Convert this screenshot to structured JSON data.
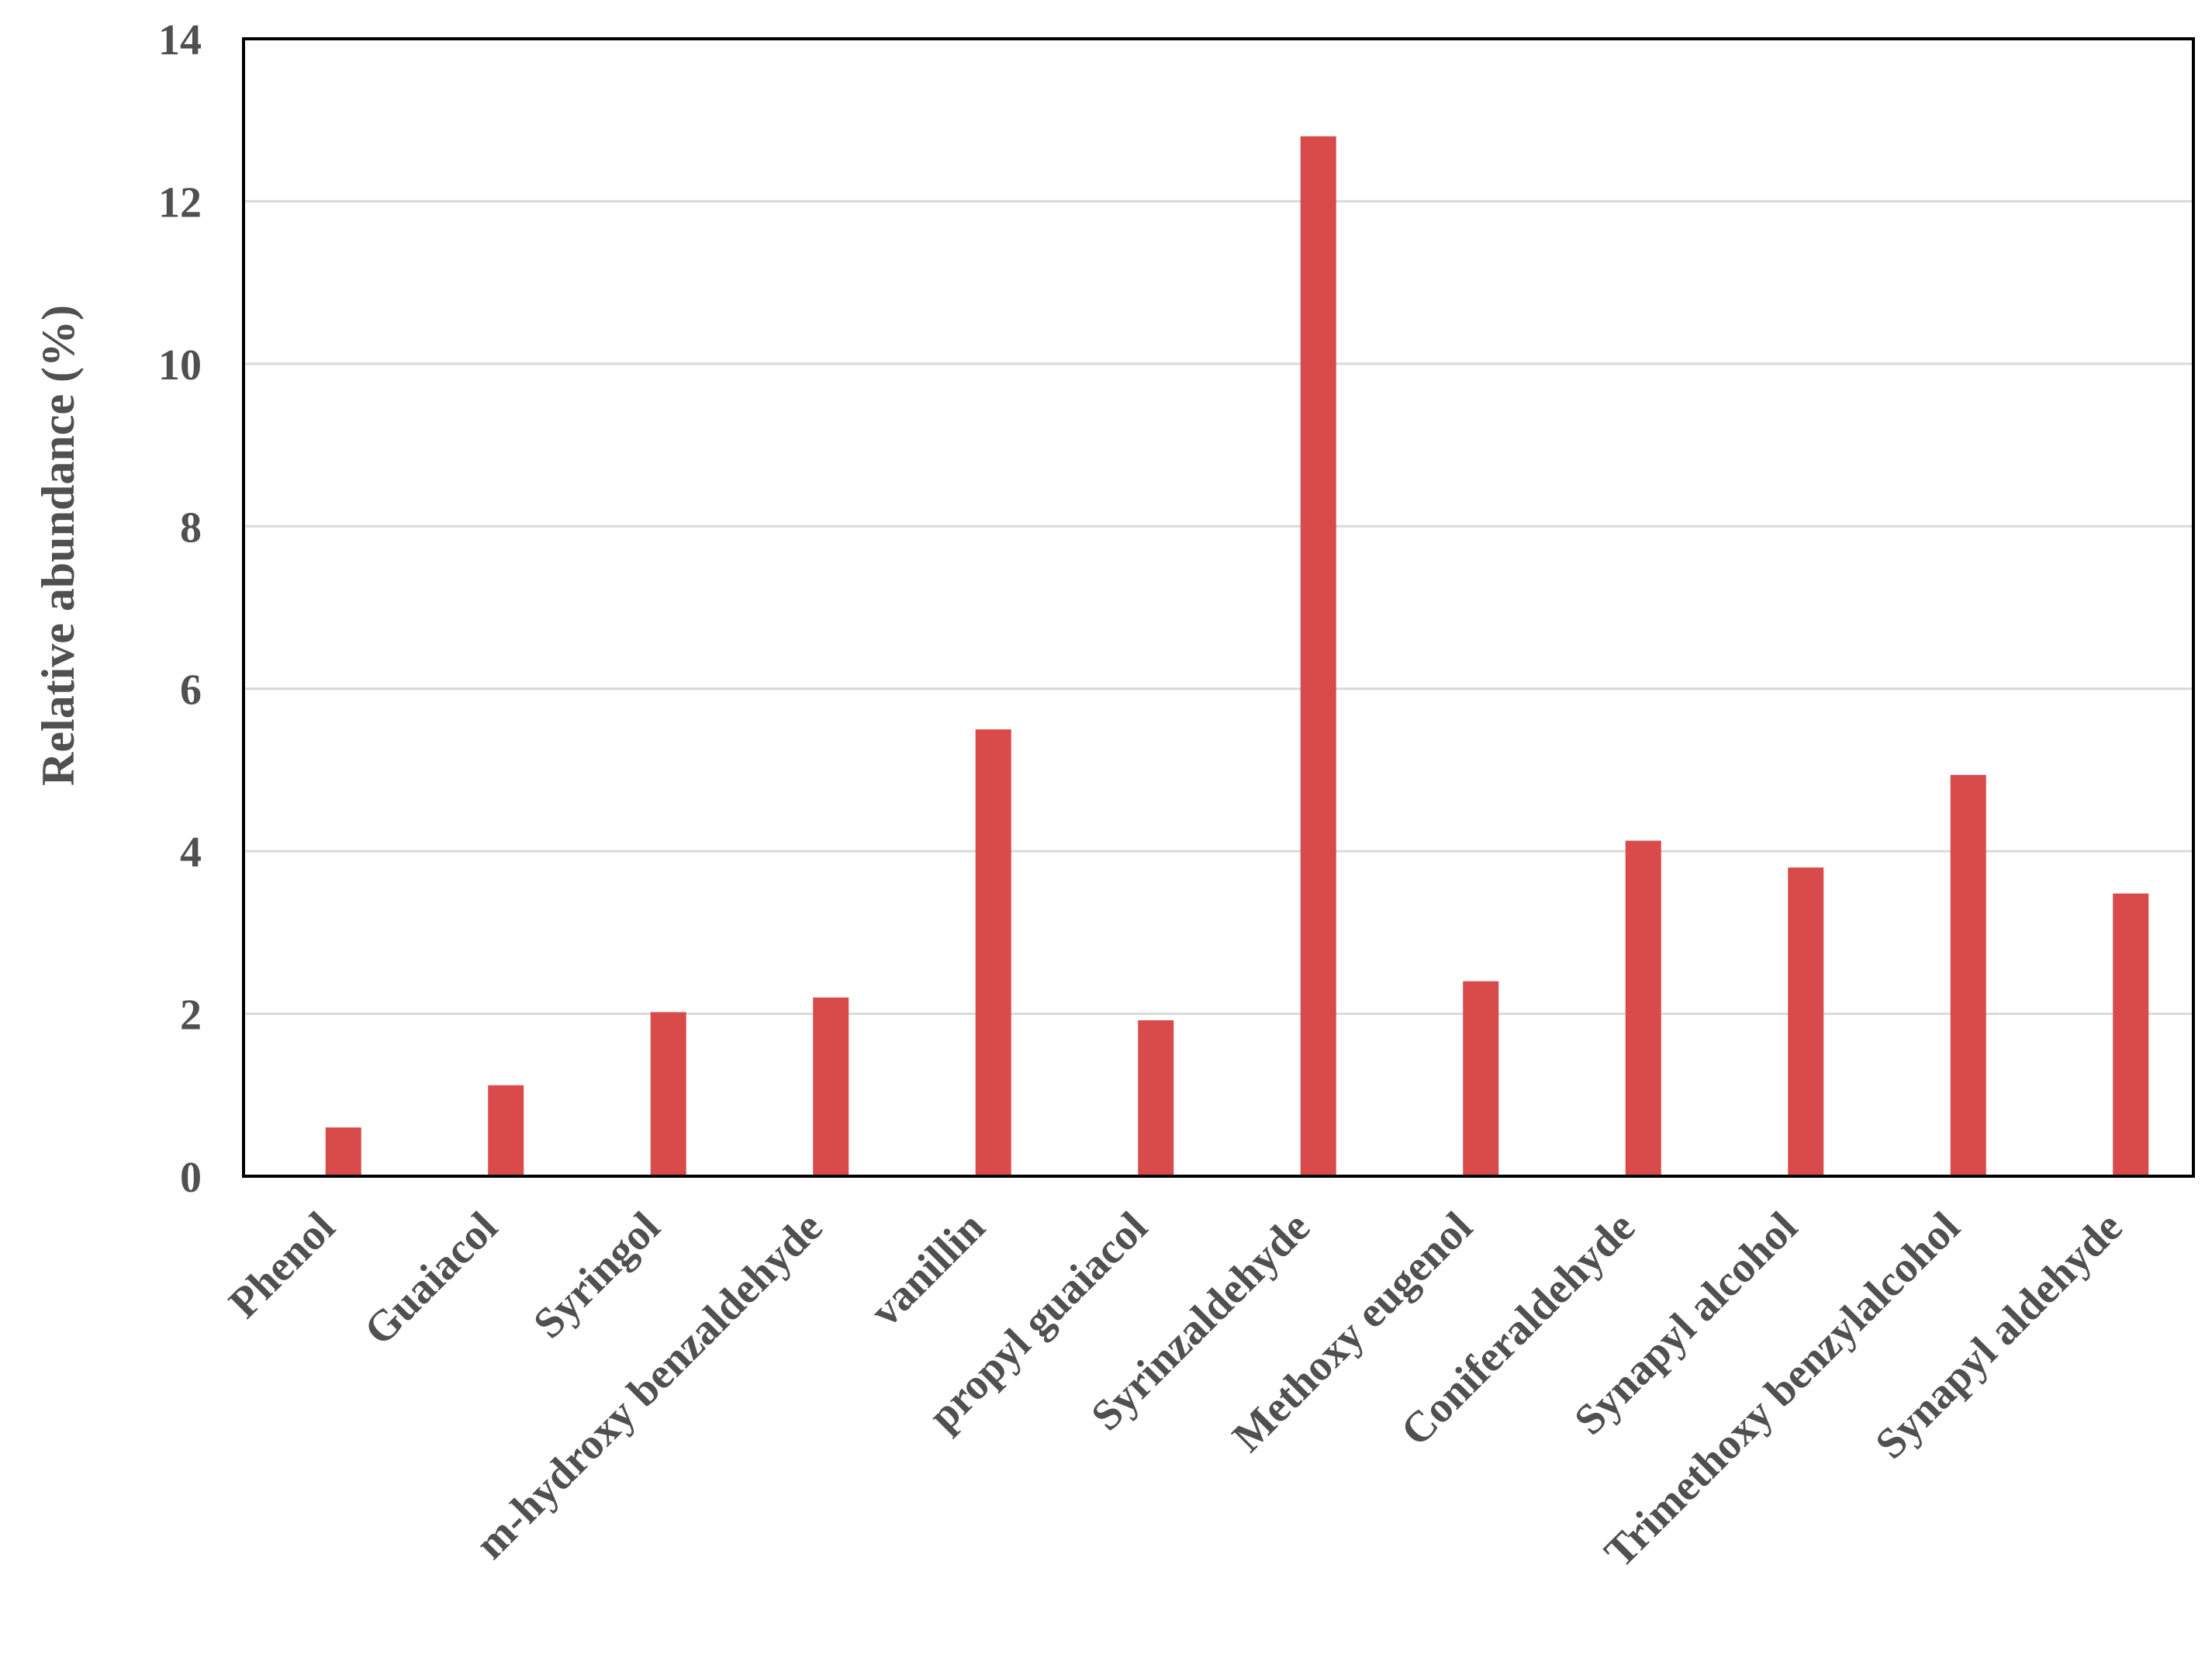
{
  "chart_data": {
    "type": "bar",
    "title": "",
    "xlabel": "",
    "ylabel": "Relative abundance (%)",
    "ylim": [
      0,
      14
    ],
    "yticks": [
      "0",
      "2",
      "4",
      "6",
      "8",
      "10",
      "12",
      "14"
    ],
    "grid": true,
    "legend": "none",
    "categories": [
      "Phenol",
      "Guaiacol",
      "Syringol",
      "m-hydroxy benzaldehyde",
      "vanillin",
      "propyl guaiacol",
      "Syrinzaldehyde",
      "Methoxy eugenol",
      "Coniferaldehyde",
      "Synapyl alcohol",
      "Trimethoxy benzylalcohol",
      "Synapyl aldehyde"
    ],
    "values": [
      0.6,
      1.12,
      2.02,
      2.2,
      5.5,
      1.92,
      12.8,
      2.4,
      4.13,
      3.8,
      4.94,
      3.48
    ],
    "colors": {
      "bar": "#d94b4b",
      "grid": "#d9d9d9",
      "axis": "#000000",
      "text": "#505050"
    }
  }
}
